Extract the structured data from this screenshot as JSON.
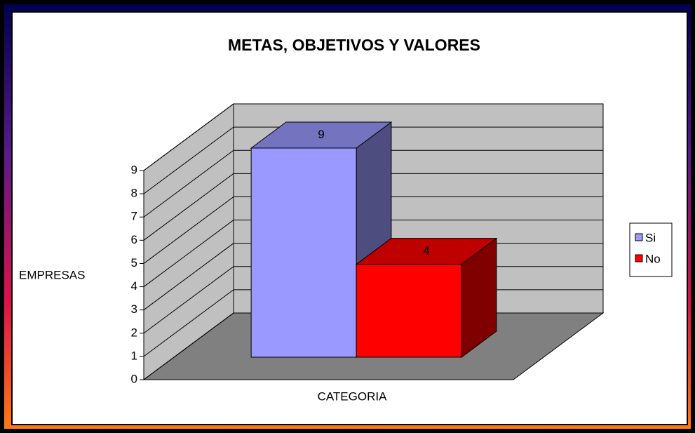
{
  "chart_data": {
    "type": "bar3d",
    "title": "METAS, OBJETIVOS Y VALORES",
    "x_label": "CATEGORIA",
    "y_label": "EMPRESAS",
    "categories": [
      null
    ],
    "series": [
      {
        "name": "Si",
        "color": "#9999ff",
        "values": [
          9
        ]
      },
      {
        "name": "No",
        "color": "#ff0000",
        "values": [
          4
        ]
      }
    ],
    "ylim": [
      0,
      9
    ],
    "yticks": [
      0,
      1,
      2,
      3,
      4,
      5,
      6,
      7,
      8,
      9
    ],
    "grid": true,
    "legend": "right"
  }
}
